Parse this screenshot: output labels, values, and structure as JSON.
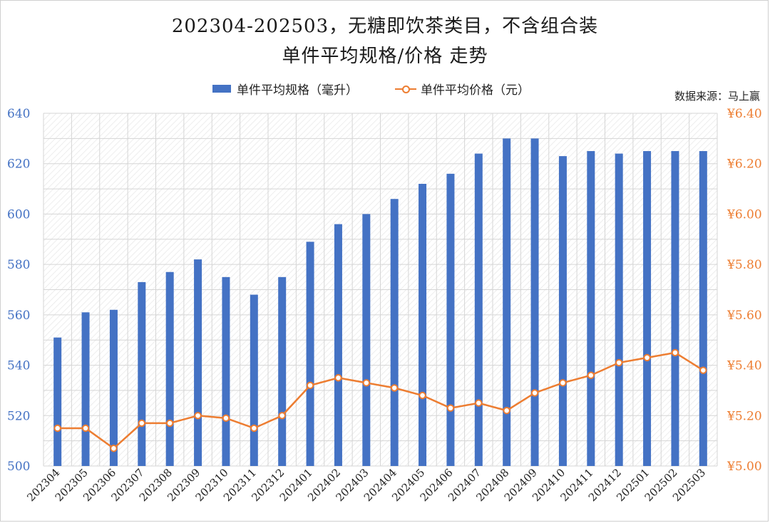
{
  "title_line1": "202304-202503，无糖即饮茶类目，不含组合装",
  "title_line2": "单件平均规格/价格 走势",
  "source": "数据来源：马上赢",
  "colors": {
    "bar": "#4472c4",
    "line": "#ed7d31",
    "left_axis_text": "#4472c4",
    "right_axis_text": "#ed7d31",
    "grid": "#d9d9d9"
  },
  "chart_data": {
    "type": "bar",
    "categories": [
      "202304",
      "202305",
      "202306",
      "202307",
      "202308",
      "202309",
      "202310",
      "202311",
      "202312",
      "202401",
      "202402",
      "202403",
      "202404",
      "202405",
      "202406",
      "202407",
      "202408",
      "202409",
      "202410",
      "202411",
      "202412",
      "202501",
      "202502",
      "202503"
    ],
    "series": [
      {
        "name": "单件平均规格（毫升）",
        "type": "bar",
        "axis": "left",
        "values": [
          551,
          561,
          562,
          573,
          577,
          582,
          575,
          568,
          575,
          589,
          596,
          600,
          606,
          612,
          616,
          624,
          630,
          630,
          623,
          625,
          624,
          625,
          625,
          625
        ]
      },
      {
        "name": "单件平均价格（元）",
        "type": "line",
        "axis": "right",
        "values": [
          5.15,
          5.15,
          5.07,
          5.17,
          5.17,
          5.2,
          5.19,
          5.15,
          5.2,
          5.32,
          5.35,
          5.33,
          5.31,
          5.28,
          5.23,
          5.25,
          5.22,
          5.29,
          5.33,
          5.36,
          5.41,
          5.43,
          5.45,
          5.38
        ]
      }
    ],
    "y_left": {
      "min": 500,
      "max": 640,
      "ticks": [
        "500",
        "520",
        "540",
        "560",
        "580",
        "600",
        "620",
        "640"
      ]
    },
    "y_right": {
      "min": 5.0,
      "max": 6.4,
      "ticks": [
        "¥5.00",
        "¥5.20",
        "¥5.40",
        "¥5.60",
        "¥5.80",
        "¥6.00",
        "¥6.20",
        "¥6.40"
      ]
    },
    "grid": true,
    "legend_position": "top"
  }
}
